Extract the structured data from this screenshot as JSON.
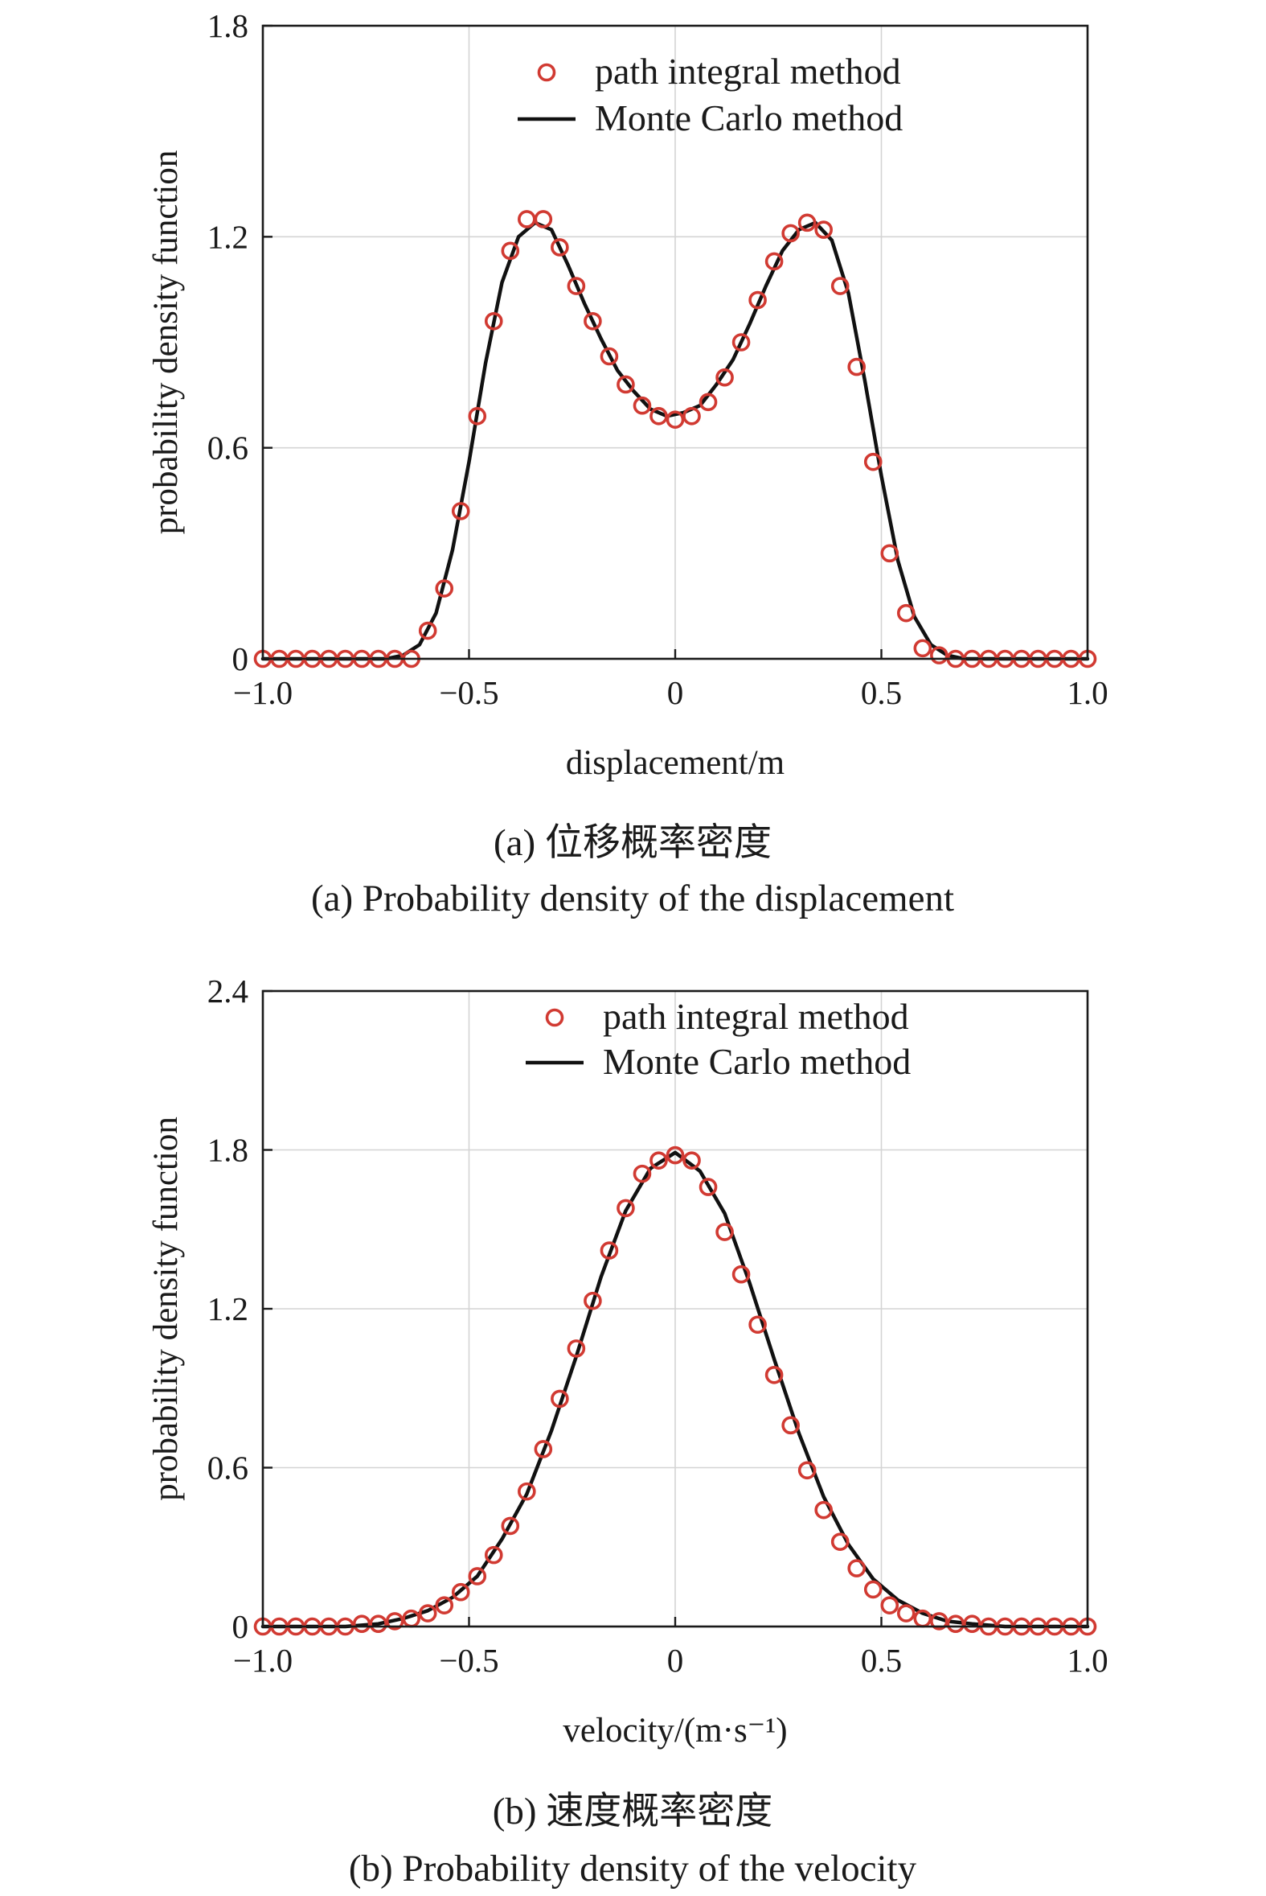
{
  "chart_data": [
    {
      "type": "line",
      "panel": "a",
      "xlabel": "displacement/m",
      "ylabel": "probability density function",
      "xlim": [
        -1.0,
        1.0
      ],
      "ylim": [
        0,
        1.8
      ],
      "xticks": [
        -1.0,
        -0.5,
        0,
        0.5,
        1.0
      ],
      "xtick_labels": [
        "−1.0",
        "−0.5",
        "0",
        "0.5",
        "1.0"
      ],
      "yticks": [
        0,
        0.6,
        1.2,
        1.8
      ],
      "ytick_labels": [
        "0",
        "0.6",
        "1.2",
        "1.8"
      ],
      "grid": true,
      "legend": "top-right",
      "caption_cn": "(a) 位移概率密度",
      "caption_en": "(a) Probability density of the displacement",
      "series": [
        {
          "name": "path integral method",
          "kind": "scatter",
          "marker": "open-circle",
          "color": "#d13a32",
          "x": [
            -1.0,
            -0.96,
            -0.92,
            -0.88,
            -0.84,
            -0.8,
            -0.76,
            -0.72,
            -0.68,
            -0.64,
            -0.6,
            -0.56,
            -0.52,
            -0.48,
            -0.44,
            -0.4,
            -0.36,
            -0.32,
            -0.28,
            -0.24,
            -0.2,
            -0.16,
            -0.12,
            -0.08,
            -0.04,
            0.0,
            0.04,
            0.08,
            0.12,
            0.16,
            0.2,
            0.24,
            0.28,
            0.32,
            0.36,
            0.4,
            0.44,
            0.48,
            0.52,
            0.56,
            0.6,
            0.64,
            0.68,
            0.72,
            0.76,
            0.8,
            0.84,
            0.88,
            0.92,
            0.96,
            1.0
          ],
          "y": [
            0,
            0,
            0,
            0,
            0,
            0,
            0,
            0,
            0,
            0,
            0.08,
            0.2,
            0.42,
            0.69,
            0.96,
            1.16,
            1.25,
            1.25,
            1.17,
            1.06,
            0.96,
            0.86,
            0.78,
            0.72,
            0.69,
            0.68,
            0.69,
            0.73,
            0.8,
            0.9,
            1.02,
            1.13,
            1.21,
            1.24,
            1.22,
            1.06,
            0.83,
            0.56,
            0.3,
            0.13,
            0.03,
            0.01,
            0,
            0,
            0,
            0,
            0,
            0,
            0,
            0,
            0
          ]
        },
        {
          "name": "Monte Carlo method",
          "kind": "line",
          "color": "#111111",
          "x": [
            -1.0,
            -0.9,
            -0.8,
            -0.7,
            -0.66,
            -0.62,
            -0.58,
            -0.54,
            -0.5,
            -0.46,
            -0.42,
            -0.38,
            -0.34,
            -0.3,
            -0.26,
            -0.22,
            -0.18,
            -0.14,
            -0.1,
            -0.06,
            -0.02,
            0.02,
            0.06,
            0.1,
            0.14,
            0.18,
            0.22,
            0.26,
            0.3,
            0.34,
            0.38,
            0.42,
            0.46,
            0.5,
            0.54,
            0.58,
            0.62,
            0.66,
            0.7,
            0.8,
            0.9,
            1.0
          ],
          "y": [
            0,
            0,
            0,
            0,
            0.01,
            0.04,
            0.13,
            0.31,
            0.56,
            0.84,
            1.07,
            1.2,
            1.24,
            1.22,
            1.12,
            1.01,
            0.91,
            0.82,
            0.76,
            0.71,
            0.69,
            0.7,
            0.72,
            0.78,
            0.85,
            0.95,
            1.06,
            1.16,
            1.22,
            1.24,
            1.19,
            1.04,
            0.79,
            0.52,
            0.28,
            0.12,
            0.04,
            0.01,
            0,
            0,
            0,
            0
          ]
        }
      ]
    },
    {
      "type": "line",
      "panel": "b",
      "xlabel": "velocity/(m·s⁻¹)",
      "ylabel": "probability density function",
      "xlim": [
        -1.0,
        1.0
      ],
      "ylim": [
        0,
        2.4
      ],
      "xticks": [
        -1.0,
        -0.5,
        0,
        0.5,
        1.0
      ],
      "xtick_labels": [
        "−1.0",
        "−0.5",
        "0",
        "0.5",
        "1.0"
      ],
      "yticks": [
        0,
        0.6,
        1.2,
        1.8,
        2.4
      ],
      "ytick_labels": [
        "0",
        "0.6",
        "1.2",
        "1.8",
        "2.4"
      ],
      "grid": true,
      "legend": "top-right",
      "caption_cn": "(b) 速度概率密度",
      "caption_en": "(b) Probability density of the velocity",
      "series": [
        {
          "name": "path integral method",
          "kind": "scatter",
          "marker": "open-circle",
          "color": "#d13a32",
          "x": [
            -1.0,
            -0.96,
            -0.92,
            -0.88,
            -0.84,
            -0.8,
            -0.76,
            -0.72,
            -0.68,
            -0.64,
            -0.6,
            -0.56,
            -0.52,
            -0.48,
            -0.44,
            -0.4,
            -0.36,
            -0.32,
            -0.28,
            -0.24,
            -0.2,
            -0.16,
            -0.12,
            -0.08,
            -0.04,
            0.0,
            0.04,
            0.08,
            0.12,
            0.16,
            0.2,
            0.24,
            0.28,
            0.32,
            0.36,
            0.4,
            0.44,
            0.48,
            0.52,
            0.56,
            0.6,
            0.64,
            0.68,
            0.72,
            0.76,
            0.8,
            0.84,
            0.88,
            0.92,
            0.96,
            1.0
          ],
          "y": [
            0,
            0,
            0,
            0,
            0,
            0,
            0.01,
            0.01,
            0.02,
            0.03,
            0.05,
            0.08,
            0.13,
            0.19,
            0.27,
            0.38,
            0.51,
            0.67,
            0.86,
            1.05,
            1.23,
            1.42,
            1.58,
            1.71,
            1.76,
            1.78,
            1.76,
            1.66,
            1.49,
            1.33,
            1.14,
            0.95,
            0.76,
            0.59,
            0.44,
            0.32,
            0.22,
            0.14,
            0.08,
            0.05,
            0.03,
            0.02,
            0.01,
            0.01,
            0,
            0,
            0,
            0,
            0,
            0,
            0
          ]
        },
        {
          "name": "Monte Carlo method",
          "kind": "line",
          "color": "#111111",
          "x": [
            -1.0,
            -0.9,
            -0.8,
            -0.72,
            -0.66,
            -0.6,
            -0.54,
            -0.48,
            -0.42,
            -0.36,
            -0.3,
            -0.24,
            -0.18,
            -0.12,
            -0.06,
            0.0,
            0.06,
            0.12,
            0.18,
            0.24,
            0.3,
            0.36,
            0.42,
            0.48,
            0.54,
            0.6,
            0.66,
            0.72,
            0.8,
            0.9,
            1.0
          ],
          "y": [
            0,
            0,
            0,
            0.01,
            0.03,
            0.06,
            0.11,
            0.19,
            0.33,
            0.5,
            0.74,
            1.02,
            1.32,
            1.57,
            1.73,
            1.79,
            1.72,
            1.56,
            1.3,
            1.01,
            0.73,
            0.49,
            0.31,
            0.18,
            0.1,
            0.05,
            0.02,
            0.01,
            0,
            0,
            0
          ]
        }
      ]
    }
  ]
}
